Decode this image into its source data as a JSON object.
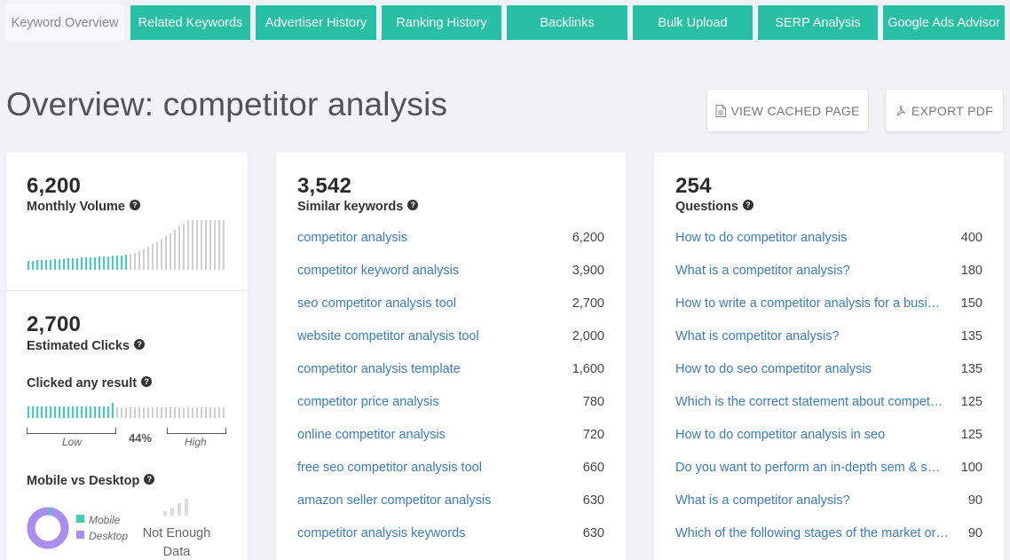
{
  "tabs": [
    {
      "label": "Keyword Overview",
      "active": true
    },
    {
      "label": "Related Keywords",
      "active": false
    },
    {
      "label": "Advertiser History",
      "active": false
    },
    {
      "label": "Ranking History",
      "active": false
    },
    {
      "label": "Backlinks",
      "active": false
    },
    {
      "label": "Bulk Upload",
      "active": false
    },
    {
      "label": "SERP Analysis",
      "active": false
    },
    {
      "label": "Google Ads Advisor",
      "active": false
    }
  ],
  "header": {
    "title": "Overview: competitor analysis",
    "view_cached_label": "VIEW CACHED PAGE",
    "export_pdf_label": "EXPORT PDF"
  },
  "volume": {
    "value": "6,200",
    "label": "Monthly Volume"
  },
  "clicks": {
    "value": "2,700",
    "label": "Estimated Clicks",
    "clicked_any_label": "Clicked any result",
    "percent": "44%",
    "percent_fraction": 0.44,
    "low_label": "Low",
    "high_label": "High"
  },
  "device": {
    "label": "Mobile vs Desktop",
    "mobile_label": "Mobile",
    "desktop_label": "Desktop",
    "mobile_fraction": 0.02,
    "not_enough_line1": "Not Enough",
    "not_enough_line2": "Data"
  },
  "similar": {
    "value": "3,542",
    "label": "Similar keywords",
    "rows": [
      {
        "keyword": "competitor analysis",
        "volume": "6,200"
      },
      {
        "keyword": "competitor keyword analysis",
        "volume": "3,900"
      },
      {
        "keyword": "seo competitor analysis tool",
        "volume": "2,700"
      },
      {
        "keyword": "website competitor analysis tool",
        "volume": "2,000"
      },
      {
        "keyword": "competitor analysis template",
        "volume": "1,600"
      },
      {
        "keyword": "competitor price analysis",
        "volume": "780"
      },
      {
        "keyword": "online competitor analysis",
        "volume": "720"
      },
      {
        "keyword": "free seo competitor analysis tool",
        "volume": "660"
      },
      {
        "keyword": "amazon seller competitor analysis",
        "volume": "630"
      },
      {
        "keyword": "competitor analysis keywords",
        "volume": "630"
      }
    ]
  },
  "questions": {
    "value": "254",
    "label": "Questions",
    "rows": [
      {
        "question": "How to do competitor analysis",
        "volume": "400"
      },
      {
        "question": "What is a competitor analysis?",
        "volume": "180"
      },
      {
        "question": "How to write a competitor analysis for a busi…",
        "volume": "150"
      },
      {
        "question": "What is competitor analysis?",
        "volume": "135"
      },
      {
        "question": "How to do seo competitor analysis",
        "volume": "135"
      },
      {
        "question": "Which is the correct statement about compet…",
        "volume": "125"
      },
      {
        "question": "How to do competitor analysis in seo",
        "volume": "125"
      },
      {
        "question": "Do you want to perform an in-depth sem & s…",
        "volume": "100"
      },
      {
        "question": "What is a competitor analysis?",
        "volume": "90"
      },
      {
        "question": "Which of the following stages of the market or…",
        "volume": "90"
      }
    ]
  },
  "colors": {
    "accent": "#27c0a5",
    "bar_active": "#3dd1b6",
    "bar_inactive": "#cfcfcf",
    "mobile": "#3dd1b6",
    "desktop": "#a98ef0",
    "link": "#3a7bbf"
  }
}
